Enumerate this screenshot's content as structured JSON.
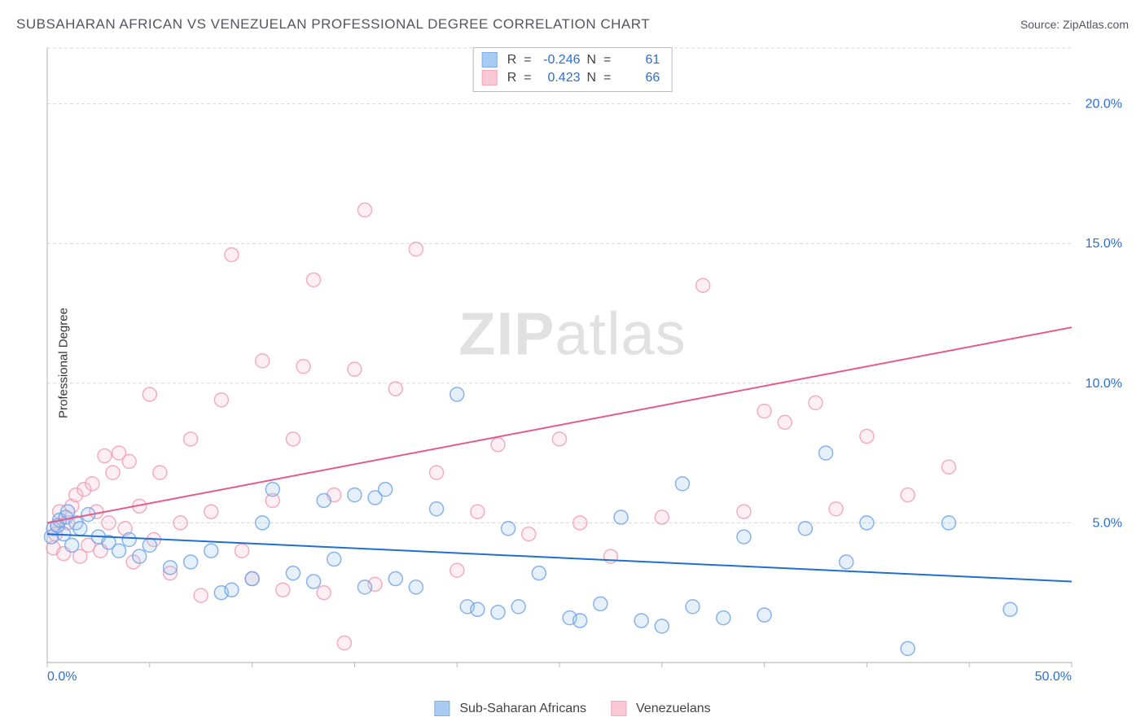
{
  "title": "SUBSAHARAN AFRICAN VS VENEZUELAN PROFESSIONAL DEGREE CORRELATION CHART",
  "source_label": "Source: ",
  "source_name": "ZipAtlas.com",
  "ylabel": "Professional Degree",
  "watermark_bold": "ZIP",
  "watermark_light": "atlas",
  "chart": {
    "type": "scatter",
    "background_color": "#ffffff",
    "grid_color": "#d8d8d8",
    "axis_color": "#bcbcbc",
    "xlim": [
      0,
      50
    ],
    "ylim": [
      0,
      22
    ],
    "x_ticks": [
      0,
      5,
      10,
      15,
      20,
      25,
      30,
      35,
      40,
      45,
      50
    ],
    "x_tick_labels": {
      "0": "0.0%",
      "50": "50.0%"
    },
    "y_gridlines": [
      5,
      10,
      15,
      20
    ],
    "y_tick_labels": [
      "5.0%",
      "10.0%",
      "15.0%",
      "20.0%"
    ],
    "marker_radius": 8.5,
    "marker_stroke_width": 1.5,
    "marker_fill_opacity": 0.25,
    "line_width": 2,
    "series": [
      {
        "id": "blue",
        "name": "Sub-Saharan Africans",
        "color_stroke": "#6ba3e8",
        "color_fill": "#9ac3ef",
        "line_color": "#1f6fd1",
        "R": "-0.246",
        "N": "61",
        "trend": {
          "x1": 0,
          "y1": 4.6,
          "x2": 50,
          "y2": 2.9
        },
        "points": [
          [
            0.2,
            4.5
          ],
          [
            0.3,
            4.8
          ],
          [
            0.5,
            4.9
          ],
          [
            0.6,
            5.1
          ],
          [
            0.8,
            4.6
          ],
          [
            0.9,
            5.2
          ],
          [
            1.0,
            5.4
          ],
          [
            1.2,
            4.2
          ],
          [
            1.4,
            5.0
          ],
          [
            1.6,
            4.8
          ],
          [
            2.0,
            5.3
          ],
          [
            2.5,
            4.5
          ],
          [
            3.0,
            4.3
          ],
          [
            3.5,
            4.0
          ],
          [
            4.0,
            4.4
          ],
          [
            4.5,
            3.8
          ],
          [
            5.0,
            4.2
          ],
          [
            6.0,
            3.4
          ],
          [
            7.0,
            3.6
          ],
          [
            8.0,
            4.0
          ],
          [
            8.5,
            2.5
          ],
          [
            9.0,
            2.6
          ],
          [
            10.0,
            3.0
          ],
          [
            10.5,
            5.0
          ],
          [
            11.0,
            6.2
          ],
          [
            12.0,
            3.2
          ],
          [
            13.0,
            2.9
          ],
          [
            13.5,
            5.8
          ],
          [
            14.0,
            3.7
          ],
          [
            15.0,
            6.0
          ],
          [
            15.5,
            2.7
          ],
          [
            16.0,
            5.9
          ],
          [
            16.5,
            6.2
          ],
          [
            17.0,
            3.0
          ],
          [
            18.0,
            2.7
          ],
          [
            19.0,
            5.5
          ],
          [
            20.0,
            9.6
          ],
          [
            20.5,
            2.0
          ],
          [
            21.0,
            1.9
          ],
          [
            22.0,
            1.8
          ],
          [
            22.5,
            4.8
          ],
          [
            23.0,
            2.0
          ],
          [
            24.0,
            3.2
          ],
          [
            25.5,
            1.6
          ],
          [
            26.0,
            1.5
          ],
          [
            27.0,
            2.1
          ],
          [
            28.0,
            5.2
          ],
          [
            29.0,
            1.5
          ],
          [
            30.0,
            1.3
          ],
          [
            31.0,
            6.4
          ],
          [
            31.5,
            2.0
          ],
          [
            33.0,
            1.6
          ],
          [
            34.0,
            4.5
          ],
          [
            35.0,
            1.7
          ],
          [
            37.0,
            4.8
          ],
          [
            38.0,
            7.5
          ],
          [
            39.0,
            3.6
          ],
          [
            40.0,
            5.0
          ],
          [
            42.0,
            0.5
          ],
          [
            44.0,
            5.0
          ],
          [
            47.0,
            1.9
          ]
        ]
      },
      {
        "id": "pink",
        "name": "Venezuelans",
        "color_stroke": "#f19ab0",
        "color_fill": "#f7bfce",
        "line_color": "#e65a8a",
        "R": "0.423",
        "N": "66",
        "trend": {
          "x1": 0,
          "y1": 5.0,
          "x2": 50,
          "y2": 12.0
        },
        "points": [
          [
            0.3,
            4.1
          ],
          [
            0.4,
            4.6
          ],
          [
            0.5,
            4.9
          ],
          [
            0.6,
            5.4
          ],
          [
            0.8,
            3.9
          ],
          [
            1.0,
            5.0
          ],
          [
            1.2,
            5.6
          ],
          [
            1.4,
            6.0
          ],
          [
            1.6,
            3.8
          ],
          [
            1.8,
            6.2
          ],
          [
            2.0,
            4.2
          ],
          [
            2.2,
            6.4
          ],
          [
            2.4,
            5.4
          ],
          [
            2.6,
            4.0
          ],
          [
            2.8,
            7.4
          ],
          [
            3.0,
            5.0
          ],
          [
            3.2,
            6.8
          ],
          [
            3.5,
            7.5
          ],
          [
            3.8,
            4.8
          ],
          [
            4.0,
            7.2
          ],
          [
            4.2,
            3.6
          ],
          [
            4.5,
            5.6
          ],
          [
            5.0,
            9.6
          ],
          [
            5.2,
            4.4
          ],
          [
            5.5,
            6.8
          ],
          [
            6.0,
            3.2
          ],
          [
            6.5,
            5.0
          ],
          [
            7.0,
            8.0
          ],
          [
            7.5,
            2.4
          ],
          [
            8.0,
            5.4
          ],
          [
            8.5,
            9.4
          ],
          [
            9.0,
            14.6
          ],
          [
            9.5,
            4.0
          ],
          [
            10.0,
            3.0
          ],
          [
            10.5,
            10.8
          ],
          [
            11.0,
            5.8
          ],
          [
            11.5,
            2.6
          ],
          [
            12.0,
            8.0
          ],
          [
            12.5,
            10.6
          ],
          [
            13.0,
            13.7
          ],
          [
            13.5,
            2.5
          ],
          [
            14.0,
            6.0
          ],
          [
            14.5,
            0.7
          ],
          [
            15.0,
            10.5
          ],
          [
            15.5,
            16.2
          ],
          [
            16.0,
            2.8
          ],
          [
            17.0,
            9.8
          ],
          [
            18.0,
            14.8
          ],
          [
            19.0,
            6.8
          ],
          [
            20.0,
            3.3
          ],
          [
            21.0,
            5.4
          ],
          [
            22.0,
            7.8
          ],
          [
            23.5,
            4.6
          ],
          [
            25.0,
            8.0
          ],
          [
            26.0,
            5.0
          ],
          [
            27.5,
            3.8
          ],
          [
            30.0,
            5.2
          ],
          [
            32.0,
            13.5
          ],
          [
            34.0,
            5.4
          ],
          [
            35.0,
            9.0
          ],
          [
            36.0,
            8.6
          ],
          [
            37.5,
            9.3
          ],
          [
            38.5,
            5.5
          ],
          [
            40.0,
            8.1
          ],
          [
            42.0,
            6.0
          ],
          [
            44.0,
            7.0
          ]
        ]
      }
    ]
  },
  "stats_labels": {
    "R": "R  =",
    "N": "N  ="
  }
}
